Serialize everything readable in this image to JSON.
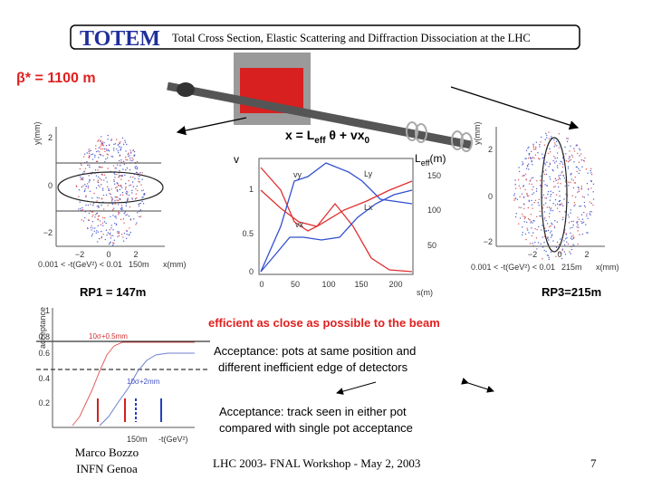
{
  "header": {
    "logo": "TOTEM",
    "title": "Total Cross Section, Elastic Scattering and Diffraction Dissociation at the LHC"
  },
  "beta_label": "β* = 1100 m",
  "formula": {
    "lhs": "x = L",
    "sub1": "eff",
    "mid": " θ + vx",
    "sub2": "0"
  },
  "left_plot": {
    "y_label": "y(mm)",
    "yticks": [
      "2",
      "0",
      "−2"
    ],
    "xticks": [
      "−2",
      "0",
      "2"
    ],
    "caption": "0.001 < -t(GeV²) < 0.01",
    "distance": "150m",
    "x_label": "x(mm)"
  },
  "right_plot": {
    "y_label": "y(mm)",
    "yticks": [
      "2",
      "0",
      "−2"
    ],
    "xticks": [
      "−2",
      "0",
      "2"
    ],
    "caption": "0.001 < -t(GeV²) < 0.01",
    "distance": "215m",
    "x_label": "x(mm)"
  },
  "optics_plot": {
    "left_label": "v",
    "right_label_main": "L",
    "right_label_sub": "eff",
    "right_label_unit": "(m)",
    "left_ticks": [
      "1",
      "0.5",
      "0"
    ],
    "right_ticks": [
      "150",
      "100",
      "50"
    ],
    "xticks": [
      "0",
      "50",
      "100",
      "150",
      "200"
    ],
    "x_label": "s(m)",
    "curve_labels": [
      "Ly",
      "Lx",
      "vy",
      "vx"
    ]
  },
  "rp1": "RP1 = 147m",
  "rp3": "RP3=215m",
  "efficient_note": "efficient as close as possible to the beam",
  "acceptance_plot": {
    "y_label": "acceptance",
    "yticks": [
      "1",
      "0.8",
      "0.6",
      "0.4",
      "0.2"
    ],
    "curve_labels": [
      "10σ+0.5mm",
      "10σ+2mm"
    ],
    "distance": "150m",
    "x_label": "-t(GeV²)"
  },
  "note1": {
    "line1": "Acceptance: pots at same position and",
    "line2": "different inefficient edge of detectors"
  },
  "note2": {
    "line1": "Acceptance: track seen in either pot",
    "line2": "compared with single pot acceptance"
  },
  "footer": {
    "author": "Marco Bozzo",
    "institute": "INFN Genoa",
    "event": "LHC 2003- FNAL Workshop - May 2, 2003",
    "page": "7"
  }
}
